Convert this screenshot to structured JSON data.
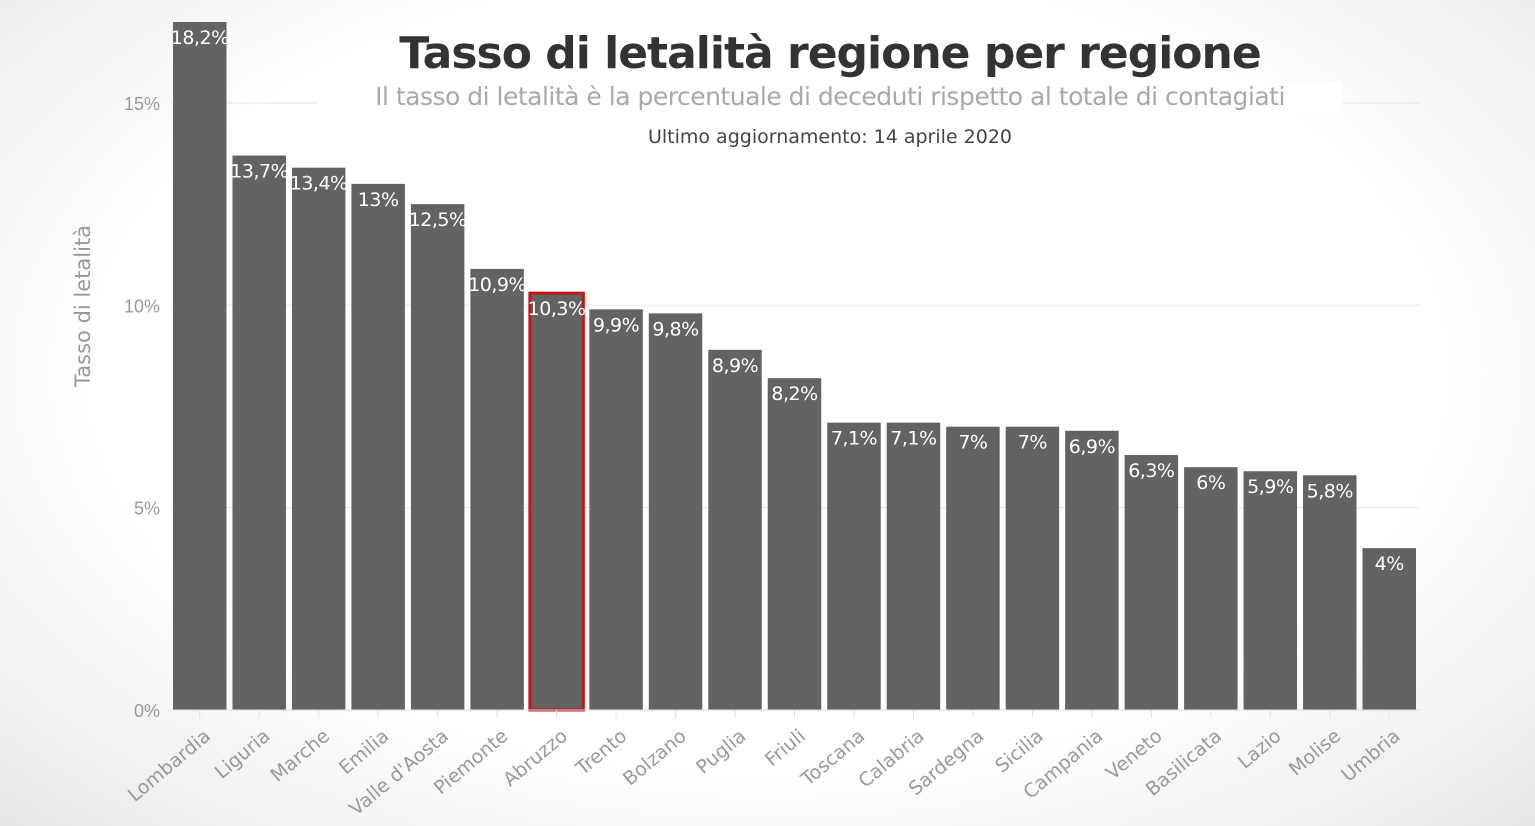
{
  "chart_data": {
    "type": "bar",
    "title": "Tasso di letalità regione per regione",
    "subtitle": "Il tasso di letalità è la percentuale di deceduti rispetto al totale di contagiati",
    "note": "Ultimo aggiornamento: 14 aprile 2020",
    "xlabel": "",
    "ylabel": "Tasso di letalità",
    "ylim": [
      0,
      17
    ],
    "yticks": [
      0,
      5,
      10,
      15
    ],
    "ytick_labels": [
      "0%",
      "5%",
      "10%",
      "15%"
    ],
    "grid": true,
    "categories": [
      "Lombardia",
      "Liguria",
      "Marche",
      "Emilia",
      "Valle d'Aosta",
      "Piemonte",
      "Abruzzo",
      "Trento",
      "Bolzano",
      "Puglia",
      "Friuli",
      "Toscana",
      "Calabria",
      "Sardegna",
      "Sicilia",
      "Campania",
      "Veneto",
      "Basilicata",
      "Lazio",
      "Molise",
      "Umbria"
    ],
    "values": [
      18.2,
      13.7,
      13.4,
      13,
      12.5,
      10.9,
      10.3,
      9.9,
      9.8,
      8.9,
      8.2,
      7.1,
      7.1,
      7,
      7,
      6.9,
      6.3,
      6,
      5.9,
      5.8,
      4
    ],
    "data_labels": [
      "18,2%",
      "13,7%",
      "13,4%",
      "13%",
      "12,5%",
      "10,9%",
      "10,3%",
      "9,9%",
      "9,8%",
      "8,9%",
      "8,2%",
      "7,1%",
      "7,1%",
      "7%",
      "7%",
      "6,9%",
      "6,3%",
      "6%",
      "5,9%",
      "5,8%",
      "4%"
    ],
    "highlighted": "Abruzzo",
    "colors": {
      "bar": "#636363",
      "highlight_outline": "#c0171c",
      "label": "#ffffff"
    }
  }
}
